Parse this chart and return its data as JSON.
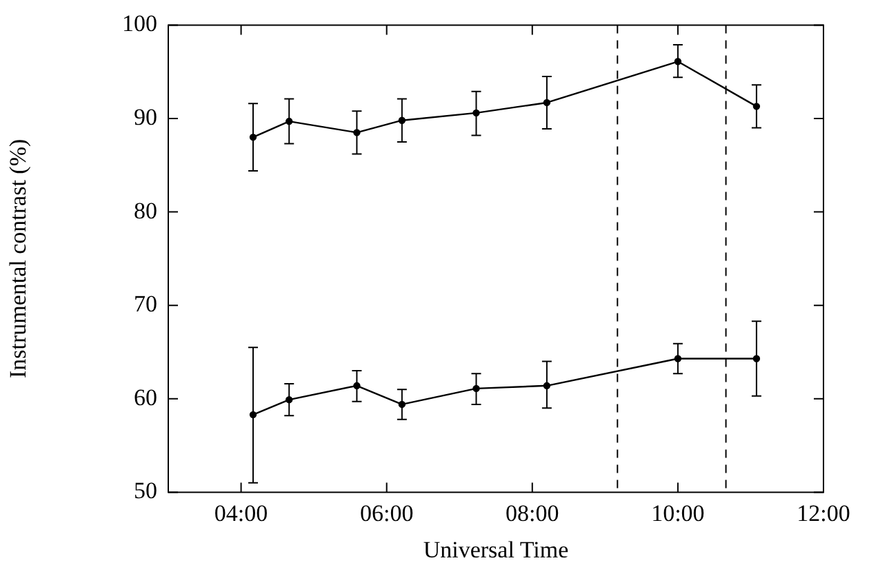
{
  "chart_data": {
    "type": "line",
    "xlabel": "Universal Time",
    "ylabel": "Instrumental contrast (%)",
    "x": [
      4.165,
      4.66,
      5.59,
      6.21,
      7.23,
      8.2,
      10.0,
      11.08
    ],
    "series": [
      {
        "color": "#000000",
        "values": [
          88.0,
          89.7,
          88.5,
          89.8,
          90.6,
          91.7,
          96.1,
          91.3
        ],
        "errors": [
          [
            84.4,
            91.6
          ],
          [
            87.3,
            92.1
          ],
          [
            86.2,
            90.8
          ],
          [
            87.5,
            92.1
          ],
          [
            88.2,
            92.9
          ],
          [
            88.9,
            94.5
          ],
          [
            94.4,
            97.9
          ],
          [
            89.0,
            93.6
          ]
        ]
      },
      {
        "color": "#000000",
        "values": [
          58.3,
          59.9,
          61.4,
          59.4,
          61.1,
          61.4,
          64.3,
          64.3
        ],
        "errors": [
          [
            51.0,
            65.5
          ],
          [
            58.2,
            61.6
          ],
          [
            59.7,
            63.0
          ],
          [
            57.8,
            61.0
          ],
          [
            59.4,
            62.7
          ],
          [
            59.0,
            64.0
          ],
          [
            62.7,
            65.9
          ],
          [
            60.3,
            68.3
          ]
        ]
      }
    ],
    "xlim": [
      3,
      12
    ],
    "xticks": [
      {
        "value": 4,
        "label": "04:00"
      },
      {
        "value": 6,
        "label": "06:00"
      },
      {
        "value": 8,
        "label": "08:00"
      },
      {
        "value": 10,
        "label": "10:00"
      },
      {
        "value": 12,
        "label": "12:00"
      }
    ],
    "ylim": [
      50,
      100
    ],
    "yticks": [
      50,
      60,
      70,
      80,
      90,
      100
    ],
    "ref_lines": [
      {
        "axis": "x",
        "value": 9.17,
        "line_style": "dashed"
      },
      {
        "axis": "x",
        "value": 10.66,
        "line_style": "dashed"
      }
    ],
    "marker": "circle",
    "line_style": "solid",
    "grid": false,
    "legend": false
  }
}
